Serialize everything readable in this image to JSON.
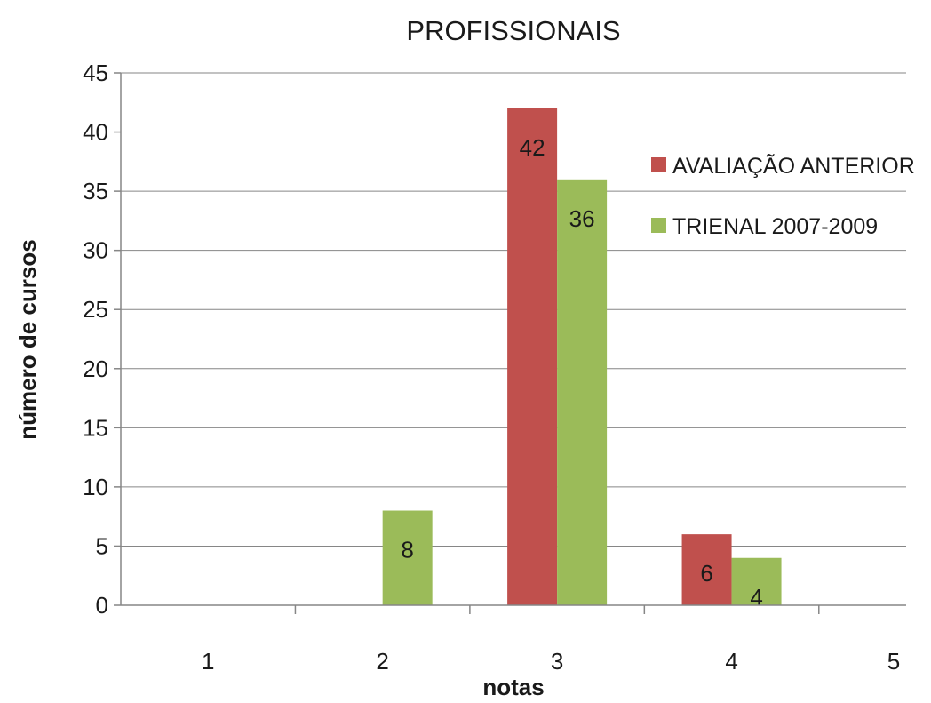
{
  "chart_data": {
    "type": "bar",
    "title": "PROFISSIONAIS",
    "xlabel": "notas",
    "ylabel": "número de cursos",
    "categories": [
      "1",
      "2",
      "3",
      "4",
      "5"
    ],
    "ylim": [
      0,
      45
    ],
    "yticks": [
      0,
      5,
      10,
      15,
      20,
      25,
      30,
      35,
      40,
      45
    ],
    "grid": true,
    "legend_position": "right",
    "series": [
      {
        "name": "AVALIAÇÃO ANTERIOR",
        "color": "#c0504d",
        "values": [
          0,
          0,
          42,
          6,
          0
        ]
      },
      {
        "name": "TRIENAL 2007-2009",
        "color": "#9bbb59",
        "values": [
          0,
          8,
          36,
          4,
          0
        ]
      }
    ]
  }
}
